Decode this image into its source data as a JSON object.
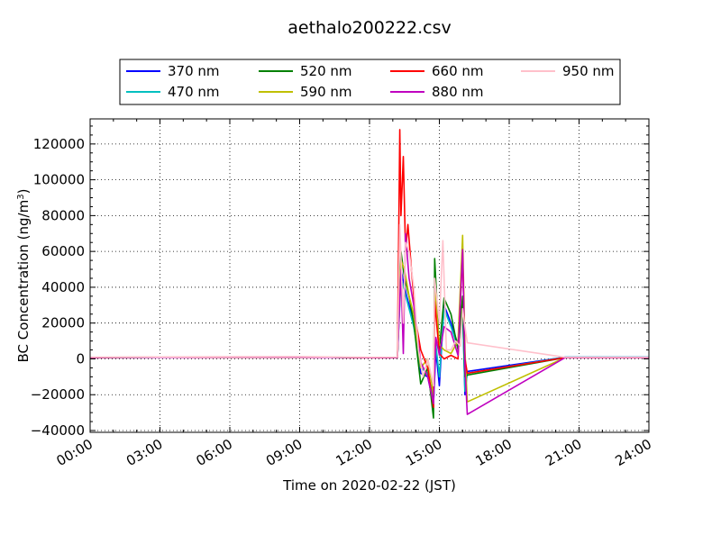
{
  "chart_data": {
    "type": "line",
    "title": "aethalo200222.csv",
    "xlabel": "Time on 2020-02-22 (JST)",
    "ylabel_main": "BC Concentration (ng/m",
    "ylabel_sup": "3",
    "ylabel_end": ")",
    "x_unit": "hours since 2020-02-22 00:00 JST",
    "xlim": [
      0,
      24
    ],
    "ylim": [
      -41000,
      134000
    ],
    "x_ticks": [
      {
        "value": 0,
        "label": "00:00"
      },
      {
        "value": 3,
        "label": "03:00"
      },
      {
        "value": 6,
        "label": "06:00"
      },
      {
        "value": 9,
        "label": "09:00"
      },
      {
        "value": 12,
        "label": "12:00"
      },
      {
        "value": 15,
        "label": "15:00"
      },
      {
        "value": 18,
        "label": "18:00"
      },
      {
        "value": 21,
        "label": "21:00"
      },
      {
        "value": 24,
        "label": "24:00"
      }
    ],
    "y_ticks": [
      {
        "value": -40000,
        "label": "−40000"
      },
      {
        "value": -20000,
        "label": "−20000"
      },
      {
        "value": 0,
        "label": "0"
      },
      {
        "value": 20000,
        "label": "20000"
      },
      {
        "value": 40000,
        "label": "40000"
      },
      {
        "value": 60000,
        "label": "60000"
      },
      {
        "value": 80000,
        "label": "80000"
      },
      {
        "value": 100000,
        "label": "100000"
      },
      {
        "value": 120000,
        "label": "120000"
      }
    ],
    "grid": true,
    "legend_position": "top",
    "series": [
      {
        "name": "370 nm",
        "color": "#0000ff",
        "points": [
          [
            0,
            800
          ],
          [
            3,
            900
          ],
          [
            6,
            1000
          ],
          [
            9,
            1100
          ],
          [
            12,
            700
          ],
          [
            13.2,
            800
          ],
          [
            13.35,
            50000
          ],
          [
            13.5,
            40000
          ],
          [
            13.7,
            30000
          ],
          [
            13.9,
            20000
          ],
          [
            14.2,
            -8000
          ],
          [
            14.5,
            -10000
          ],
          [
            14.75,
            -25000
          ],
          [
            14.85,
            5000
          ],
          [
            15.0,
            -15000
          ],
          [
            15.2,
            30000
          ],
          [
            15.5,
            20000
          ],
          [
            15.8,
            8000
          ],
          [
            16.0,
            30000
          ],
          [
            16.1,
            -20000
          ],
          [
            16.2,
            -7000
          ],
          [
            20.4,
            1000
          ],
          [
            24,
            1000
          ]
        ]
      },
      {
        "name": "470 nm",
        "color": "#00bfbf",
        "points": [
          [
            0,
            800
          ],
          [
            3,
            900
          ],
          [
            6,
            1000
          ],
          [
            9,
            1000
          ],
          [
            12,
            700
          ],
          [
            13.2,
            800
          ],
          [
            13.35,
            45000
          ],
          [
            13.5,
            38000
          ],
          [
            13.7,
            28000
          ],
          [
            13.9,
            18000
          ],
          [
            14.2,
            -5000
          ],
          [
            14.5,
            -8000
          ],
          [
            14.75,
            -22000
          ],
          [
            14.85,
            8000
          ],
          [
            15.0,
            -10000
          ],
          [
            15.2,
            28000
          ],
          [
            15.5,
            18000
          ],
          [
            15.8,
            6000
          ],
          [
            16.0,
            28000
          ],
          [
            16.1,
            -18000
          ],
          [
            16.2,
            -8000
          ],
          [
            20.4,
            1000
          ],
          [
            24,
            1000
          ]
        ]
      },
      {
        "name": "520 nm",
        "color": "#008000",
        "points": [
          [
            0,
            800
          ],
          [
            3,
            900
          ],
          [
            6,
            1000
          ],
          [
            9,
            1000
          ],
          [
            12,
            700
          ],
          [
            13.2,
            800
          ],
          [
            13.35,
            60000
          ],
          [
            13.5,
            45000
          ],
          [
            13.7,
            35000
          ],
          [
            13.9,
            20000
          ],
          [
            14.2,
            -14000
          ],
          [
            14.5,
            -5000
          ],
          [
            14.75,
            -33000
          ],
          [
            14.8,
            56000
          ],
          [
            15.0,
            5000
          ],
          [
            15.2,
            34000
          ],
          [
            15.5,
            25000
          ],
          [
            15.8,
            5000
          ],
          [
            16.0,
            35000
          ],
          [
            16.1,
            -10000
          ],
          [
            16.2,
            -9000
          ],
          [
            20.4,
            700
          ],
          [
            24,
            700
          ]
        ]
      },
      {
        "name": "590 nm",
        "color": "#bfbf00",
        "points": [
          [
            0,
            800
          ],
          [
            3,
            900
          ],
          [
            6,
            1000
          ],
          [
            9,
            1000
          ],
          [
            12,
            700
          ],
          [
            13.2,
            800
          ],
          [
            13.35,
            55000
          ],
          [
            13.5,
            50000
          ],
          [
            13.7,
            35000
          ],
          [
            13.9,
            25000
          ],
          [
            14.2,
            -5000
          ],
          [
            14.5,
            0
          ],
          [
            14.75,
            -20000
          ],
          [
            14.8,
            40000
          ],
          [
            15.0,
            8000
          ],
          [
            15.2,
            5000
          ],
          [
            15.5,
            3000
          ],
          [
            15.8,
            10000
          ],
          [
            16.0,
            69000
          ],
          [
            16.1,
            5000
          ],
          [
            16.2,
            -24000
          ],
          [
            20.4,
            700
          ],
          [
            24,
            700
          ]
        ]
      },
      {
        "name": "660 nm",
        "color": "#ff0000",
        "points": [
          [
            0,
            800
          ],
          [
            3,
            900
          ],
          [
            6,
            1000
          ],
          [
            9,
            1000
          ],
          [
            12,
            700
          ],
          [
            13.2,
            800
          ],
          [
            13.3,
            128000
          ],
          [
            13.35,
            80000
          ],
          [
            13.45,
            113000
          ],
          [
            13.55,
            60000
          ],
          [
            13.65,
            75000
          ],
          [
            13.8,
            50000
          ],
          [
            14.0,
            20000
          ],
          [
            14.2,
            5000
          ],
          [
            14.5,
            -5000
          ],
          [
            14.75,
            -27000
          ],
          [
            14.8,
            32000
          ],
          [
            15.0,
            3000
          ],
          [
            15.2,
            0
          ],
          [
            15.5,
            2000
          ],
          [
            15.8,
            0
          ],
          [
            16.0,
            60000
          ],
          [
            16.1,
            0
          ],
          [
            16.2,
            -8000
          ],
          [
            20.4,
            700
          ],
          [
            24,
            700
          ]
        ]
      },
      {
        "name": "880 nm",
        "color": "#bf00bf",
        "points": [
          [
            0,
            800
          ],
          [
            3,
            900
          ],
          [
            6,
            1000
          ],
          [
            9,
            1000
          ],
          [
            12,
            700
          ],
          [
            13.2,
            800
          ],
          [
            13.35,
            50000
          ],
          [
            13.45,
            3000
          ],
          [
            13.55,
            70000
          ],
          [
            13.7,
            45000
          ],
          [
            13.9,
            30000
          ],
          [
            14.2,
            -2000
          ],
          [
            14.5,
            -10000
          ],
          [
            14.75,
            -25000
          ],
          [
            14.85,
            12000
          ],
          [
            15.0,
            2000
          ],
          [
            15.2,
            18000
          ],
          [
            15.5,
            15000
          ],
          [
            15.8,
            2000
          ],
          [
            16.0,
            61000
          ],
          [
            16.1,
            -5000
          ],
          [
            16.2,
            -31000
          ],
          [
            20.4,
            700
          ],
          [
            24,
            700
          ]
        ]
      },
      {
        "name": "950 nm",
        "color": "#ffc0cb",
        "points": [
          [
            0,
            1000
          ],
          [
            3,
            1100
          ],
          [
            6,
            1200
          ],
          [
            9,
            1300
          ],
          [
            12,
            900
          ],
          [
            13.2,
            1000
          ],
          [
            13.3,
            75000
          ],
          [
            13.45,
            20000
          ],
          [
            13.55,
            65000
          ],
          [
            13.7,
            60000
          ],
          [
            13.9,
            40000
          ],
          [
            14.1,
            5000
          ],
          [
            14.3,
            -10000
          ],
          [
            14.5,
            0
          ],
          [
            14.75,
            -15000
          ],
          [
            14.8,
            45000
          ],
          [
            15.0,
            20000
          ],
          [
            15.15,
            66000
          ],
          [
            15.3,
            5000
          ],
          [
            15.5,
            5000
          ],
          [
            15.7,
            10000
          ],
          [
            15.9,
            7000
          ],
          [
            16.0,
            28000
          ],
          [
            16.1,
            18000
          ],
          [
            16.2,
            9000
          ],
          [
            20.4,
            900
          ],
          [
            24,
            900
          ]
        ]
      }
    ]
  }
}
